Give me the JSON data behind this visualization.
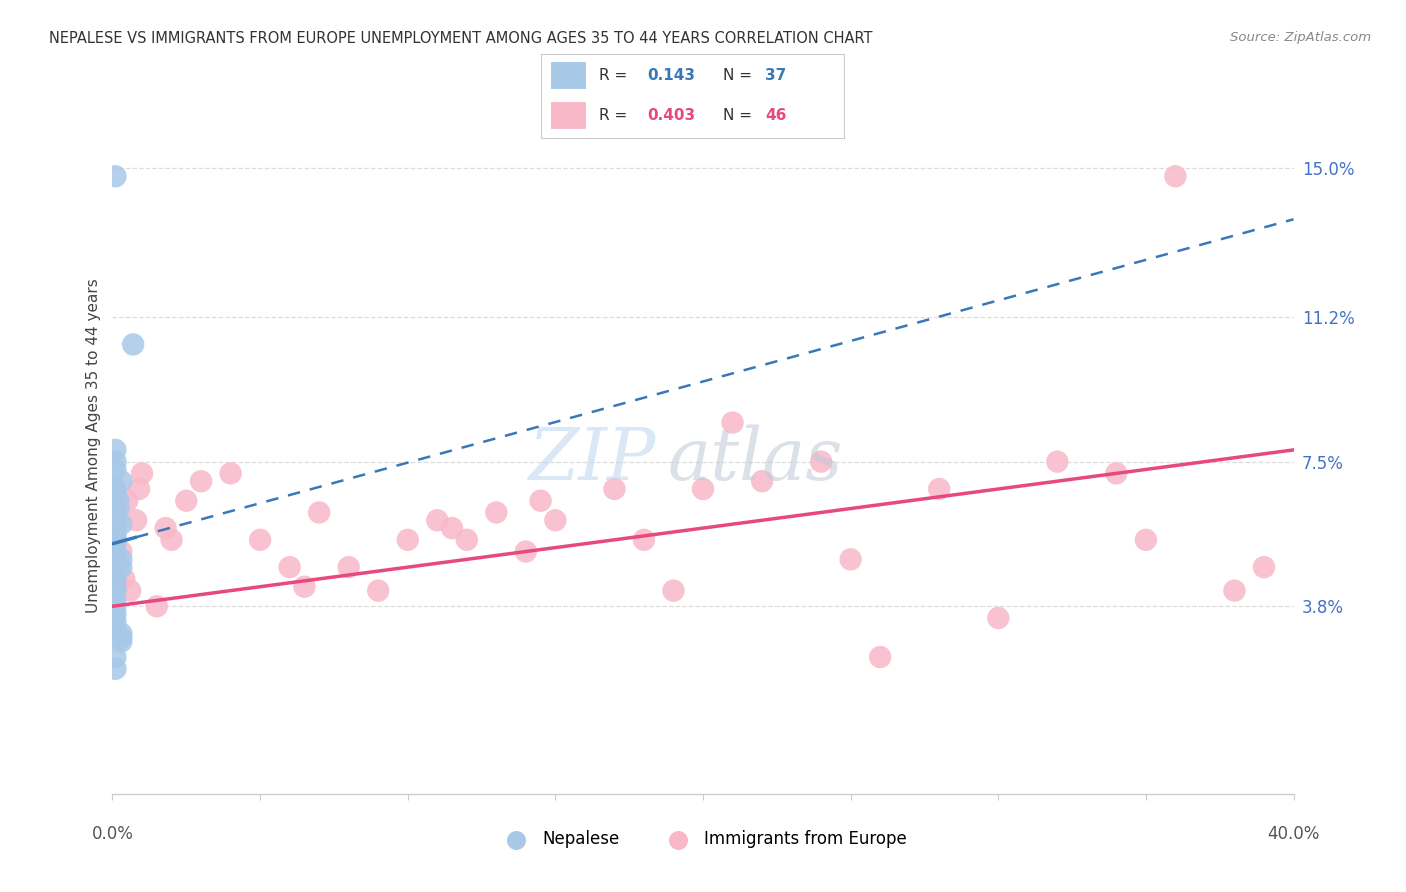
{
  "title": "NEPALESE VS IMMIGRANTS FROM EUROPE UNEMPLOYMENT AMONG AGES 35 TO 44 YEARS CORRELATION CHART",
  "source": "Source: ZipAtlas.com",
  "ylabel": "Unemployment Among Ages 35 to 44 years",
  "ytick_vals": [
    0.038,
    0.075,
    0.112,
    0.15
  ],
  "ytick_labels": [
    "3.8%",
    "7.5%",
    "11.2%",
    "15.0%"
  ],
  "xmin": 0.0,
  "xmax": 0.4,
  "ymin": -0.01,
  "ymax": 0.168,
  "blue_color": "#a8c8e8",
  "pink_color": "#f8b8c8",
  "blue_line_color": "#3878b8",
  "pink_line_color": "#e84880",
  "legend_r_nepalese": "0.143",
  "legend_n_nepalese": "37",
  "legend_r_europe": "0.403",
  "legend_n_europe": "46",
  "legend_label_nepalese": "Nepalese",
  "legend_label_europe": "Immigrants from Europe",
  "blue_line_x0": 0.0,
  "blue_line_y0": 0.054,
  "blue_line_x_solid_end": 0.008,
  "blue_line_y_solid_end": 0.064,
  "blue_line_x1": 0.4,
  "blue_line_y1": 0.137,
  "pink_line_x0": 0.0,
  "pink_line_y0": 0.038,
  "pink_line_x1": 0.4,
  "pink_line_y1": 0.078,
  "nepalese_x": [
    0.001,
    0.007,
    0.001,
    0.001,
    0.001,
    0.003,
    0.001,
    0.001,
    0.002,
    0.002,
    0.001,
    0.001,
    0.003,
    0.001,
    0.001,
    0.001,
    0.001,
    0.001,
    0.001,
    0.001,
    0.003,
    0.003,
    0.001,
    0.001,
    0.001,
    0.001,
    0.001,
    0.001,
    0.001,
    0.001,
    0.001,
    0.001,
    0.003,
    0.003,
    0.003,
    0.001,
    0.001
  ],
  "nepalese_y": [
    0.148,
    0.105,
    0.078,
    0.075,
    0.073,
    0.07,
    0.068,
    0.067,
    0.065,
    0.063,
    0.062,
    0.06,
    0.059,
    0.058,
    0.057,
    0.056,
    0.055,
    0.054,
    0.052,
    0.051,
    0.05,
    0.048,
    0.047,
    0.046,
    0.045,
    0.043,
    0.042,
    0.04,
    0.038,
    0.036,
    0.034,
    0.032,
    0.031,
    0.03,
    0.029,
    0.025,
    0.022
  ],
  "europe_x": [
    0.001,
    0.002,
    0.003,
    0.004,
    0.005,
    0.006,
    0.008,
    0.009,
    0.01,
    0.015,
    0.018,
    0.02,
    0.025,
    0.03,
    0.04,
    0.05,
    0.06,
    0.065,
    0.07,
    0.08,
    0.09,
    0.1,
    0.11,
    0.115,
    0.12,
    0.13,
    0.14,
    0.145,
    0.15,
    0.17,
    0.18,
    0.19,
    0.2,
    0.21,
    0.22,
    0.24,
    0.25,
    0.26,
    0.28,
    0.3,
    0.32,
    0.34,
    0.35,
    0.36,
    0.38,
    0.39
  ],
  "europe_y": [
    0.055,
    0.048,
    0.052,
    0.045,
    0.065,
    0.042,
    0.06,
    0.068,
    0.072,
    0.038,
    0.058,
    0.055,
    0.065,
    0.07,
    0.072,
    0.055,
    0.048,
    0.043,
    0.062,
    0.048,
    0.042,
    0.055,
    0.06,
    0.058,
    0.055,
    0.062,
    0.052,
    0.065,
    0.06,
    0.068,
    0.055,
    0.042,
    0.068,
    0.085,
    0.07,
    0.075,
    0.05,
    0.025,
    0.068,
    0.035,
    0.075,
    0.072,
    0.055,
    0.148,
    0.042,
    0.048
  ],
  "watermark_zip_color": "#c0d8f0",
  "watermark_atlas_color": "#c0c8d8",
  "grid_color": "#dddddd",
  "spine_color": "#cccccc"
}
